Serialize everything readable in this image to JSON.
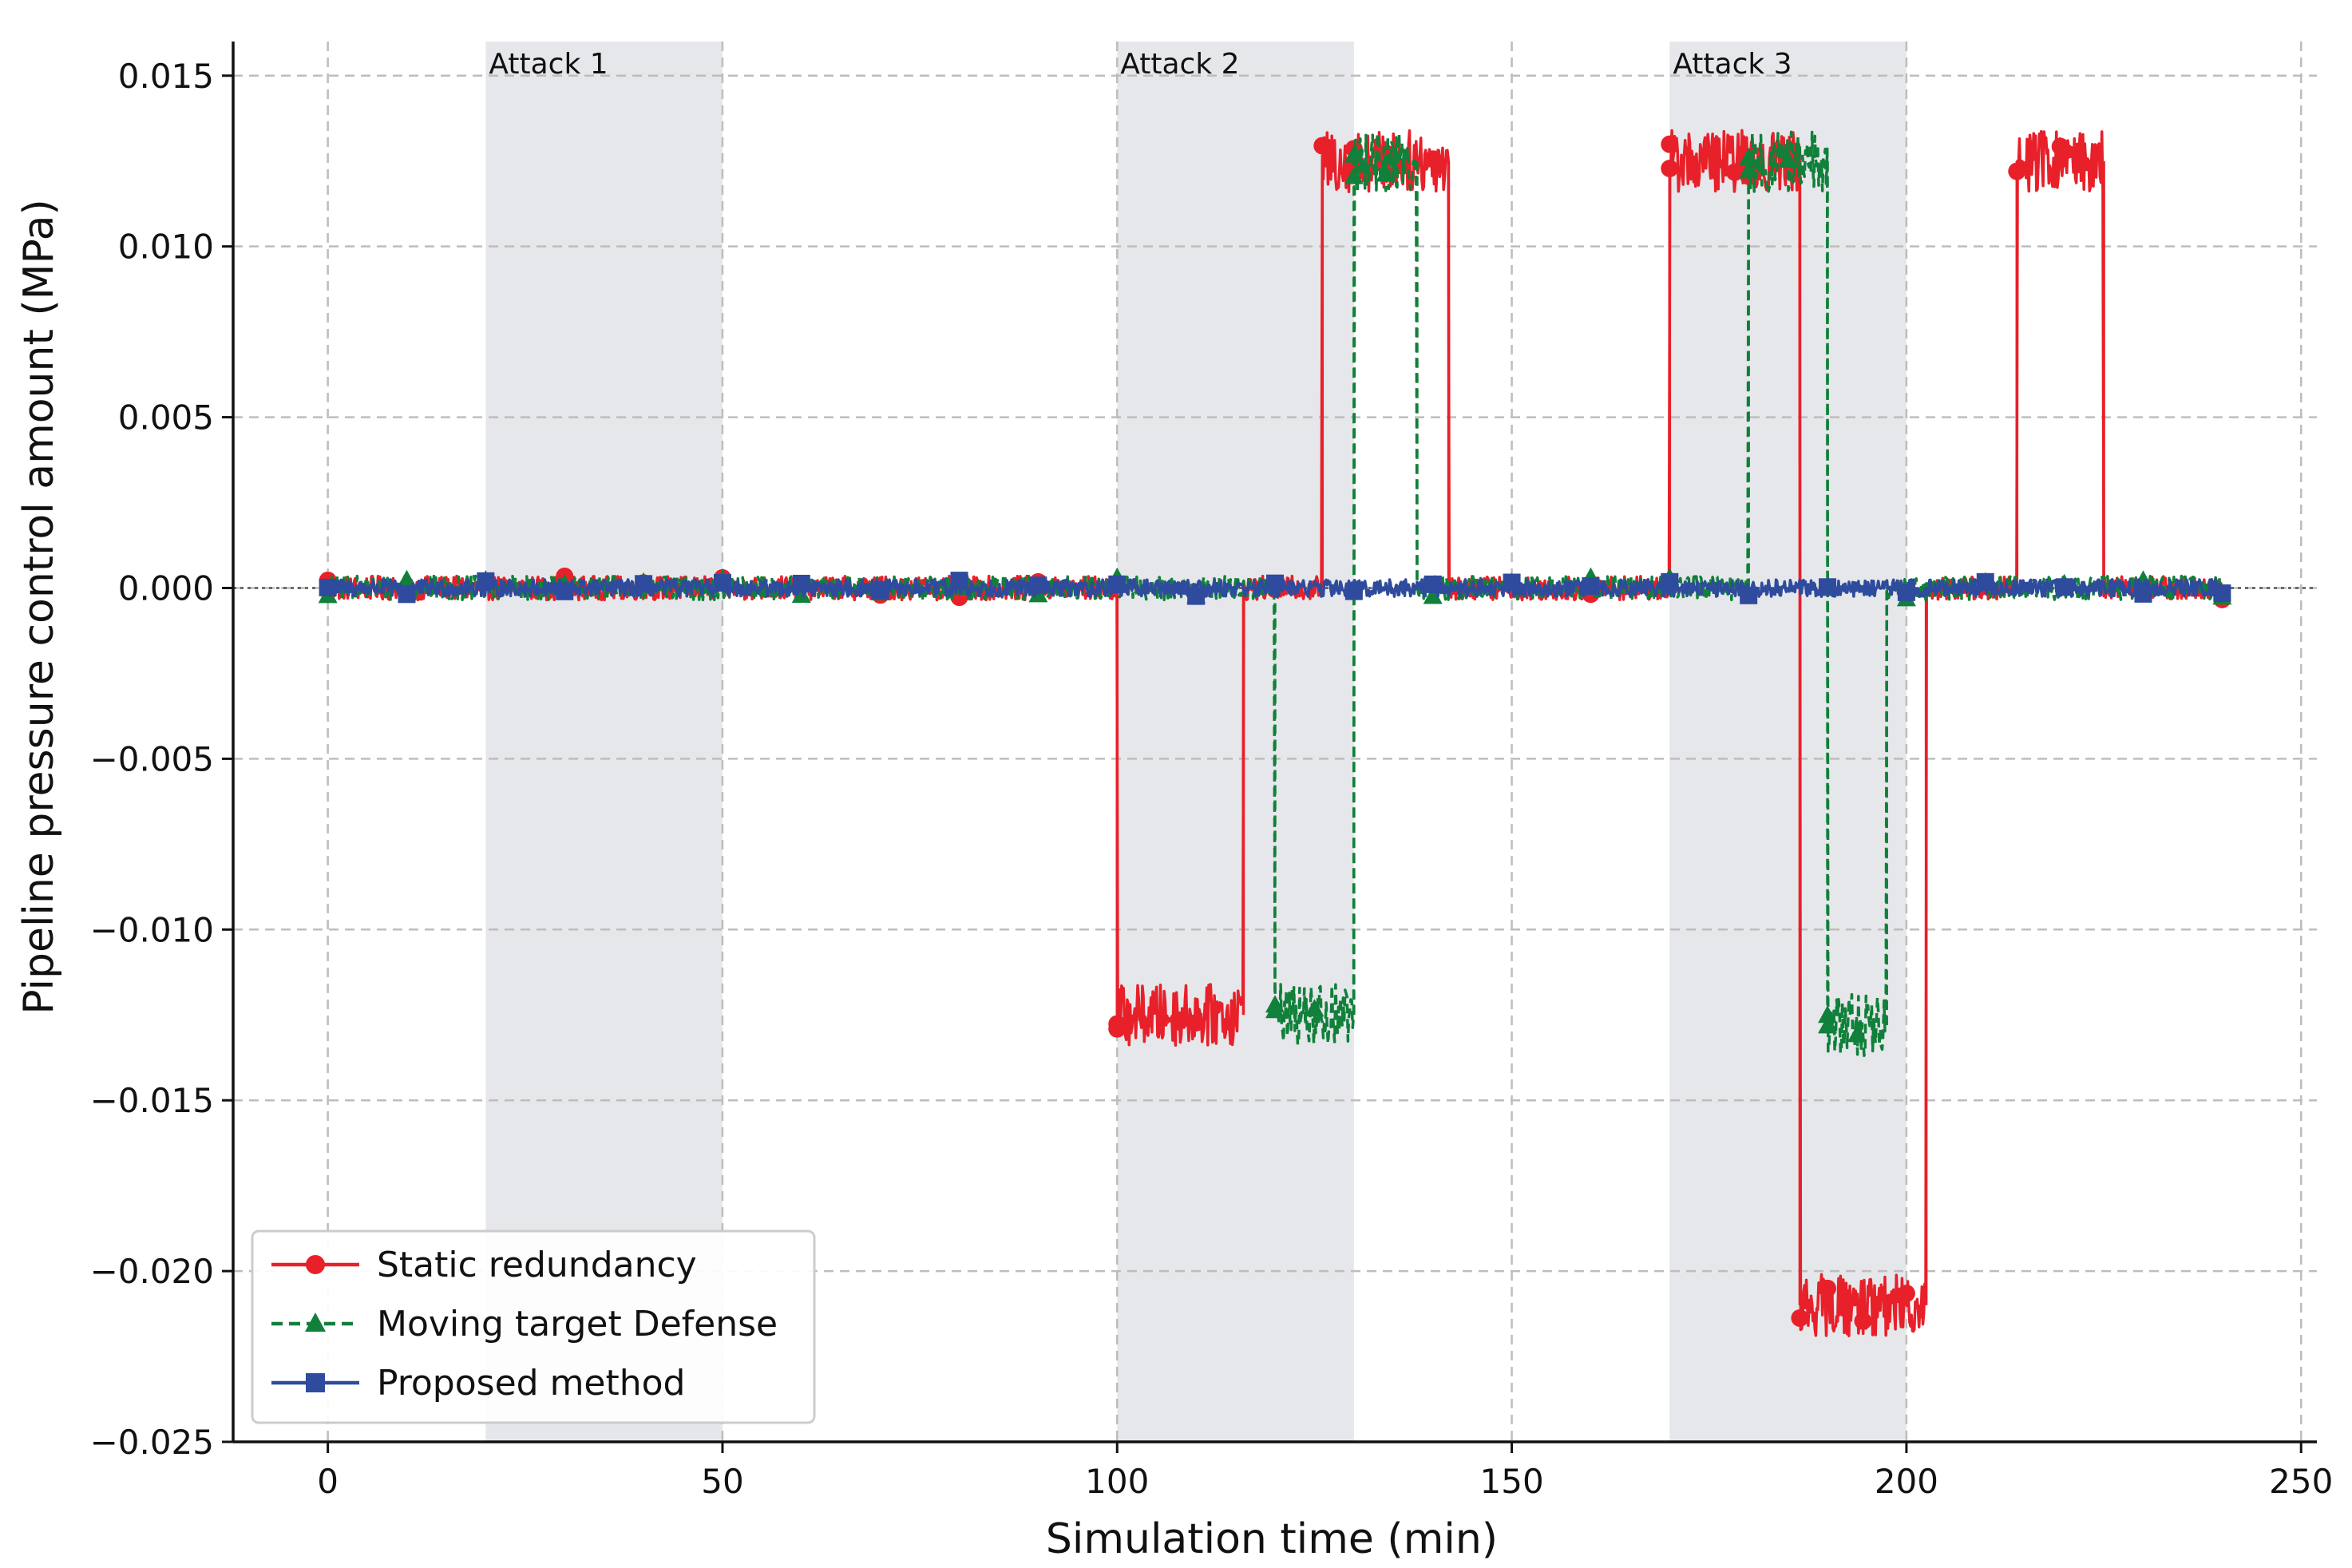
{
  "chart_data": {
    "type": "line",
    "title": "",
    "xlabel": "Simulation time (min)",
    "ylabel": "Pipeline pressure control amount (MPa)",
    "xlim": [
      -12,
      252
    ],
    "ylim": [
      -0.025,
      0.016
    ],
    "xticks": [
      0,
      50,
      100,
      150,
      200,
      250
    ],
    "xtick_labels": [
      "0",
      "50",
      "100",
      "150",
      "200",
      "250"
    ],
    "yticks": [
      -0.025,
      -0.02,
      -0.015,
      -0.01,
      -0.005,
      0.0,
      0.005,
      0.01,
      0.015
    ],
    "ytick_labels": [
      "−0.025",
      "−0.020",
      "−0.015",
      "−0.010",
      "−0.005",
      "0.000",
      "0.005",
      "0.010",
      "0.015"
    ],
    "grid": true,
    "zero_line": true,
    "attack_windows": [
      {
        "label": "Attack 1",
        "start": 20,
        "end": 50
      },
      {
        "label": "Attack 2",
        "start": 100,
        "end": 130
      },
      {
        "label": "Attack 3",
        "start": 170,
        "end": 200
      }
    ],
    "noise_amplitude_normal": 0.0003,
    "noise_amplitude_attack": 0.0009,
    "series": [
      {
        "name": "Static redundancy",
        "color": "#e8202a",
        "line_style": "solid",
        "marker": "circle",
        "noise": 0.00035,
        "segments": [
          {
            "start": 0,
            "end": 100,
            "level": 0.0
          },
          {
            "start": 100,
            "end": 116,
            "level": -0.0125
          },
          {
            "start": 116,
            "end": 126,
            "level": 0.0
          },
          {
            "start": 126,
            "end": 142,
            "level": 0.0125
          },
          {
            "start": 142,
            "end": 170,
            "level": 0.0
          },
          {
            "start": 170,
            "end": 186.5,
            "level": 0.0125
          },
          {
            "start": 186.5,
            "end": 202.5,
            "level": -0.021
          },
          {
            "start": 202.5,
            "end": 214,
            "level": 0.0
          },
          {
            "start": 214,
            "end": 225,
            "level": 0.0125
          },
          {
            "start": 225,
            "end": 240,
            "level": 0.0
          }
        ]
      },
      {
        "name": "Moving target Defense",
        "color": "#10803a",
        "line_style": "dashed",
        "marker": "triangle",
        "noise": 0.00035,
        "segments": [
          {
            "start": 0,
            "end": 120,
            "level": 0.0
          },
          {
            "start": 120,
            "end": 130,
            "level": -0.0125
          },
          {
            "start": 130,
            "end": 138,
            "level": 0.0125
          },
          {
            "start": 138,
            "end": 180,
            "level": 0.0
          },
          {
            "start": 180,
            "end": 190,
            "level": 0.0125
          },
          {
            "start": 190,
            "end": 197.5,
            "level": -0.0128
          },
          {
            "start": 197.5,
            "end": 240,
            "level": 0.0
          }
        ]
      },
      {
        "name": "Proposed method",
        "color": "#2f4b9e",
        "line_style": "solid",
        "marker": "square",
        "noise": 0.00025,
        "segments": [
          {
            "start": 0,
            "end": 240,
            "level": 0.0
          }
        ]
      }
    ],
    "legend": {
      "location": "lower-left",
      "entries": [
        "Static redundancy",
        "Moving target Defense",
        "Proposed method"
      ]
    }
  }
}
